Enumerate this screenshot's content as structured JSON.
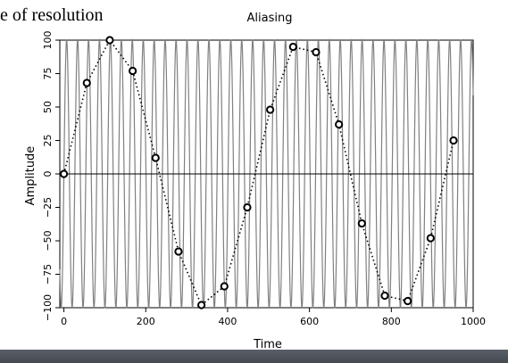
{
  "caption": "e of resolution",
  "colors": {
    "background": "#ffffff",
    "signal_line": "#808080",
    "sample_line": "#000000",
    "bottom_bar": "#4a4f56"
  },
  "chart_data": {
    "type": "line",
    "title": "Aliasing",
    "xlabel": "Time",
    "ylabel": "Amplitude",
    "xlim": [
      -10,
      1000
    ],
    "ylim": [
      -100,
      100
    ],
    "xticks": [
      0,
      200,
      400,
      600,
      800,
      1000
    ],
    "yticks": [
      -100,
      -75,
      -50,
      -25,
      0,
      25,
      50,
      75,
      100
    ],
    "ytick_labels": [
      "−100",
      "−75",
      "−50",
      "−25",
      "0",
      "25",
      "50",
      "75",
      "100"
    ],
    "grid": false,
    "zero_line": true,
    "signal": {
      "style": "solid",
      "color": "#808080",
      "frequency_cycles_per_unit": 0.0374,
      "amplitude": 100
    },
    "samples": {
      "style": "dotted-with-circle-markers",
      "x": [
        0,
        56,
        112,
        168,
        224,
        280,
        336,
        392,
        448,
        504,
        560,
        616,
        672,
        728,
        784,
        840,
        896,
        952
      ],
      "y": [
        0,
        68,
        100,
        77,
        12,
        -58,
        -98,
        -84,
        -25,
        48,
        95,
        91,
        37,
        -37,
        -91,
        -95,
        -48,
        25
      ]
    }
  }
}
